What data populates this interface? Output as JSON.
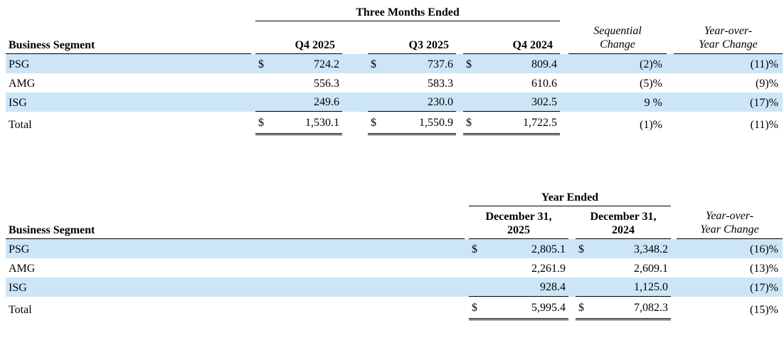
{
  "colors": {
    "row_highlight": "#cde6f7",
    "rule_color": "#000000",
    "text_color": "#000000"
  },
  "quarters_table": {
    "group_header": "Three Months Ended",
    "segment_header": "Business Segment",
    "period_columns": [
      "Q4 2025",
      "Q3 2025",
      "Q4 2024"
    ],
    "change_columns": [
      {
        "lines": [
          "Sequential",
          "Change"
        ]
      },
      {
        "lines": [
          "Year-over-",
          "Year Change"
        ]
      }
    ],
    "currency_symbol": "$",
    "rows": [
      {
        "segment": "PSG",
        "show_currency": true,
        "highlight": true,
        "style": "normal",
        "values": [
          "724.2",
          "737.6",
          "809.4"
        ],
        "changes": [
          "(2)%",
          "(11)%"
        ]
      },
      {
        "segment": "AMG",
        "show_currency": false,
        "highlight": false,
        "style": "normal",
        "values": [
          "556.3",
          "583.3",
          "610.6"
        ],
        "changes": [
          "(5)%",
          "(9)%"
        ]
      },
      {
        "segment": "ISG",
        "show_currency": false,
        "highlight": true,
        "style": "subtotal",
        "values": [
          "249.6",
          "230.0",
          "302.5"
        ],
        "changes": [
          "9 %",
          "(17)%"
        ]
      },
      {
        "segment": "Total",
        "show_currency": true,
        "highlight": false,
        "style": "total",
        "values": [
          "1,530.1",
          "1,550.9",
          "1,722.5"
        ],
        "changes": [
          "(1)%",
          "(11)%"
        ]
      }
    ]
  },
  "annual_table": {
    "group_header": "Year Ended",
    "segment_header": "Business Segment",
    "period_columns": [
      {
        "lines": [
          "December 31,",
          "2025"
        ]
      },
      {
        "lines": [
          "December 31,",
          "2024"
        ]
      }
    ],
    "change_columns": [
      {
        "lines": [
          "Year-over-",
          "Year Change"
        ]
      }
    ],
    "currency_symbol": "$",
    "rows": [
      {
        "segment": "PSG",
        "show_currency": true,
        "highlight": true,
        "style": "normal",
        "values": [
          "2,805.1",
          "3,348.2"
        ],
        "changes": [
          "(16)%"
        ]
      },
      {
        "segment": "AMG",
        "show_currency": false,
        "highlight": false,
        "style": "normal",
        "values": [
          "2,261.9",
          "2,609.1"
        ],
        "changes": [
          "(13)%"
        ]
      },
      {
        "segment": "ISG",
        "show_currency": false,
        "highlight": true,
        "style": "subtotal",
        "values": [
          "928.4",
          "1,125.0"
        ],
        "changes": [
          "(17)%"
        ]
      },
      {
        "segment": "Total",
        "show_currency": true,
        "highlight": false,
        "style": "total",
        "values": [
          "5,995.4",
          "7,082.3"
        ],
        "changes": [
          "(15)%"
        ]
      }
    ]
  }
}
